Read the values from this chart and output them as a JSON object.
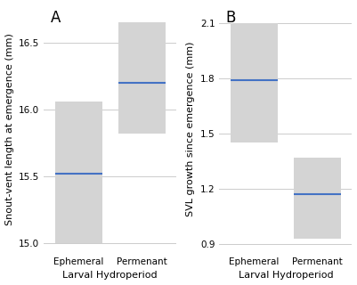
{
  "panel_A": {
    "label": "A",
    "ylabel": "Snout-vent length at emergence (mm)",
    "xlabel": "Larval Hydroperiod",
    "categories": [
      "Ephemeral",
      "Permenant"
    ],
    "means": [
      15.52,
      16.2
    ],
    "lower": [
      15.0,
      15.82
    ],
    "upper": [
      16.06,
      16.65
    ],
    "ylim": [
      14.93,
      16.78
    ],
    "yticks": [
      15.0,
      15.5,
      16.0,
      16.5
    ],
    "box_color": "#d4d4d4",
    "line_color": "#4472C4"
  },
  "panel_B": {
    "label": "B",
    "ylabel": "SVL growth since emergence (mm)",
    "xlabel": "Larval Hydroperiod",
    "categories": [
      "Ephemeral",
      "Permenant"
    ],
    "means": [
      1.79,
      1.17
    ],
    "lower": [
      1.45,
      0.93
    ],
    "upper": [
      2.1,
      1.37
    ],
    "ylim": [
      0.85,
      2.2
    ],
    "yticks": [
      0.9,
      1.2,
      1.5,
      1.8,
      2.1
    ],
    "box_color": "#d4d4d4",
    "line_color": "#4472C4"
  },
  "bg_color": "#ffffff",
  "panel_bg": "#ffffff",
  "grid_color": "#cccccc",
  "label_fontsize": 8,
  "tick_fontsize": 7.5,
  "panel_label_fontsize": 12,
  "bar_width": 0.75,
  "x_positions": [
    0.3,
    0.7
  ]
}
